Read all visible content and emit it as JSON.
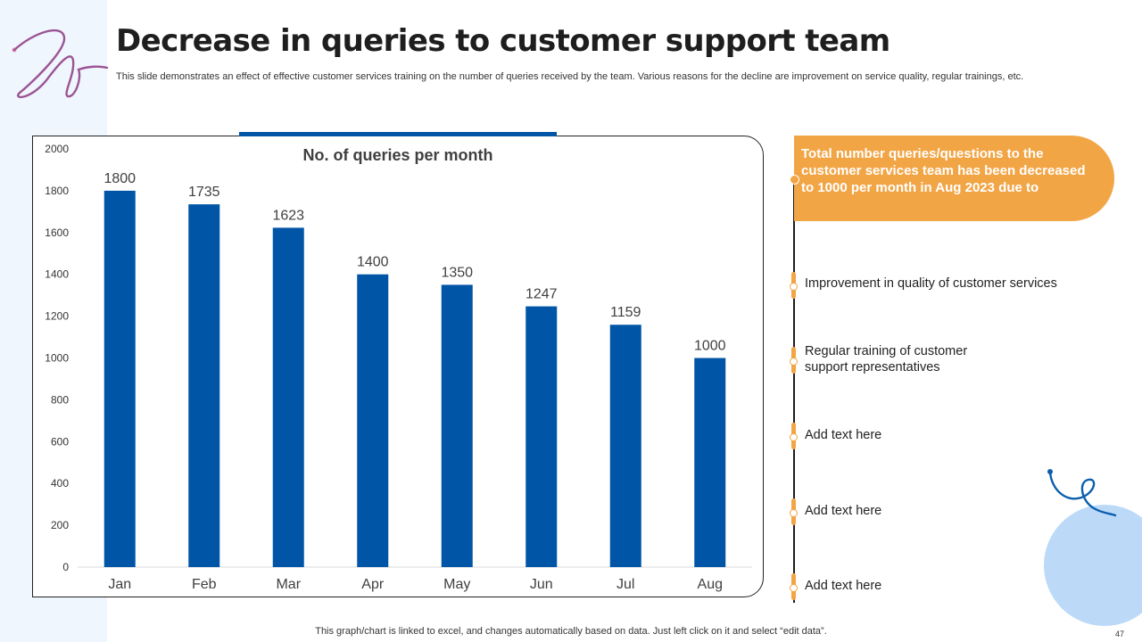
{
  "slide": {
    "title": "Decrease in queries to customer support team",
    "subtitle": "This slide demonstrates an effect of effective customer services training on the number of queries received by the team. Various reasons for the decline are improvement on service quality, regular trainings, etc.",
    "footnote": "This graph/chart is linked to excel, and changes automatically based on data. Just left click on it and select “edit data”.",
    "page_number": "47"
  },
  "callout": {
    "text": "Total number queries/questions to the customer services team has been decreased to 1000 per month in Aug 2023 due to"
  },
  "timeline": {
    "items": [
      "Improvement in quality of customer services",
      "Regular training of customer support representatives",
      "Add text here",
      "Add text here",
      "Add text here"
    ]
  },
  "colors": {
    "bar": "#0055a6",
    "accent": "#f2a545",
    "circle": "#bcdaf8"
  },
  "chart_data": {
    "type": "bar",
    "title": "No. of queries per month",
    "categories": [
      "Jan",
      "Feb",
      "Mar",
      "Apr",
      "May",
      "Jun",
      "Jul",
      "Aug"
    ],
    "values": [
      1800,
      1735,
      1623,
      1400,
      1350,
      1247,
      1159,
      1000
    ],
    "yticks": [
      0,
      200,
      400,
      600,
      800,
      1000,
      1200,
      1400,
      1600,
      1800,
      2000
    ],
    "ylim": [
      0,
      2000
    ],
    "xlabel": "",
    "ylabel": "",
    "grid": false,
    "data_labels": true
  }
}
